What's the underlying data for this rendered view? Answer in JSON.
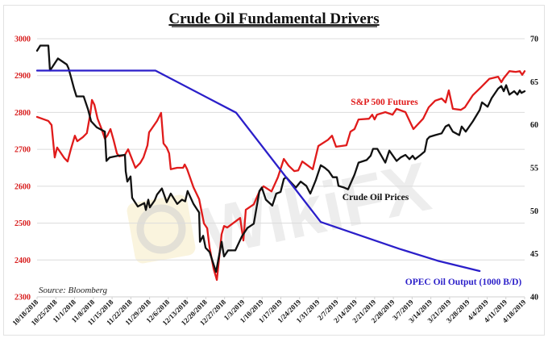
{
  "chart_data": {
    "type": "line",
    "title": "Crude Oil Fundamental Drivers",
    "source": "Source: Bloomberg",
    "watermark": "WikiFX",
    "x_start_date": "10/18/2018",
    "x_tick_labels": [
      "10/18/2018",
      "10/25/2018",
      "11/1/2018",
      "11/8/2018",
      "11/15/2018",
      "11/22/2018",
      "11/29/2018",
      "12/6/2018",
      "12/13/2018",
      "12/20/2018",
      "12/27/2018",
      "1/3/2019",
      "1/10/2019",
      "1/17/2019",
      "1/24/2019",
      "1/31/2019",
      "2/7/2019",
      "2/14/2019",
      "2/21/2019",
      "2/28/2019",
      "3/7/2019",
      "3/14/2019",
      "3/21/2019",
      "3/28/2019",
      "4/4/2019",
      "4/11/2019",
      "4/18/2019"
    ],
    "x_unit": "days since 10/18/2018",
    "xlim": [
      0,
      182
    ],
    "left_axis": {
      "ylim": [
        2300,
        3000
      ],
      "ticks": [
        "2300",
        "2400",
        "2500",
        "2600",
        "2700",
        "2800",
        "2900",
        "3000"
      ],
      "color": "#d81e1e"
    },
    "right_axis": {
      "ylim": [
        40,
        70
      ],
      "ticks": [
        "40",
        "45",
        "50",
        "55",
        "60",
        "65",
        "70"
      ],
      "color": "#111111"
    },
    "grid": true,
    "series": [
      {
        "name": "S&P 500 Futures",
        "axis": "left",
        "color": "#e01b1b",
        "points": [
          [
            0,
            2788
          ],
          [
            4.2,
            2777
          ],
          [
            5.4,
            2766
          ],
          [
            6.6,
            2678
          ],
          [
            7.5,
            2705
          ],
          [
            10.2,
            2676
          ],
          [
            11.4,
            2667
          ],
          [
            12.6,
            2700
          ],
          [
            14.1,
            2737
          ],
          [
            15,
            2722
          ],
          [
            17.1,
            2733
          ],
          [
            18.6,
            2744
          ],
          [
            19.9,
            2799
          ],
          [
            20.5,
            2834
          ],
          [
            21.4,
            2821
          ],
          [
            22.6,
            2783
          ],
          [
            24.1,
            2755
          ],
          [
            25.3,
            2729
          ],
          [
            26.2,
            2737
          ],
          [
            27.4,
            2755
          ],
          [
            28.6,
            2724
          ],
          [
            29.8,
            2689
          ],
          [
            30.7,
            2681
          ],
          [
            32.8,
            2685
          ],
          [
            34,
            2700
          ],
          [
            35.2,
            2678
          ],
          [
            36.7,
            2650
          ],
          [
            38.5,
            2663
          ],
          [
            39.7,
            2678
          ],
          [
            41.2,
            2711
          ],
          [
            41.8,
            2746
          ],
          [
            42.7,
            2755
          ],
          [
            44.8,
            2777
          ],
          [
            46.3,
            2799
          ],
          [
            47.2,
            2716
          ],
          [
            48.4,
            2705
          ],
          [
            49.3,
            2689
          ],
          [
            49.9,
            2646
          ],
          [
            52.3,
            2650
          ],
          [
            54.5,
            2650
          ],
          [
            55.1,
            2659
          ],
          [
            56,
            2646
          ],
          [
            58.4,
            2597
          ],
          [
            60.5,
            2565
          ],
          [
            62.3,
            2499
          ],
          [
            63.5,
            2486
          ],
          [
            64.4,
            2433
          ],
          [
            65.9,
            2376
          ],
          [
            67.1,
            2346
          ],
          [
            68.9,
            2470
          ],
          [
            69.8,
            2492
          ],
          [
            71,
            2488
          ],
          [
            75.8,
            2514
          ],
          [
            77,
            2453
          ],
          [
            77.9,
            2536
          ],
          [
            80.9,
            2551
          ],
          [
            83,
            2586
          ],
          [
            84.5,
            2600
          ],
          [
            87.5,
            2586
          ],
          [
            89.9,
            2624
          ],
          [
            92.1,
            2674
          ],
          [
            93.9,
            2656
          ],
          [
            96,
            2641
          ],
          [
            97.5,
            2643
          ],
          [
            99,
            2667
          ],
          [
            101.1,
            2656
          ],
          [
            102.9,
            2646
          ],
          [
            105,
            2709
          ],
          [
            108.6,
            2726
          ],
          [
            110.1,
            2737
          ],
          [
            111.6,
            2707
          ],
          [
            115.5,
            2711
          ],
          [
            117,
            2748
          ],
          [
            118.5,
            2755
          ],
          [
            120,
            2781
          ],
          [
            123.9,
            2783
          ],
          [
            125.1,
            2794
          ],
          [
            126,
            2781
          ],
          [
            126.9,
            2794
          ],
          [
            130,
            2801
          ],
          [
            132.7,
            2794
          ],
          [
            134.2,
            2810
          ],
          [
            137.5,
            2801
          ],
          [
            140.5,
            2755
          ],
          [
            144.1,
            2783
          ],
          [
            146.2,
            2814
          ],
          [
            148.6,
            2832
          ],
          [
            151,
            2838
          ],
          [
            152.5,
            2827
          ],
          [
            153.7,
            2860
          ],
          [
            155.2,
            2810
          ],
          [
            158.2,
            2807
          ],
          [
            159.7,
            2814
          ],
          [
            162.7,
            2847
          ],
          [
            165.8,
            2869
          ],
          [
            168.8,
            2891
          ],
          [
            172.1,
            2897
          ],
          [
            173.3,
            2882
          ],
          [
            174.2,
            2893
          ],
          [
            176.3,
            2912
          ],
          [
            178.7,
            2910
          ],
          [
            180.2,
            2912
          ],
          [
            181.1,
            2902
          ],
          [
            182,
            2912
          ]
        ]
      },
      {
        "name": "Crude Oil Prices",
        "axis": "right",
        "color": "#111111",
        "points": [
          [
            0,
            68.6
          ],
          [
            1.2,
            69.2
          ],
          [
            4.2,
            69.2
          ],
          [
            4.8,
            66.3
          ],
          [
            7.8,
            67.7
          ],
          [
            11.1,
            67.0
          ],
          [
            11.7,
            66.6
          ],
          [
            12.6,
            65.6
          ],
          [
            13.8,
            64.2
          ],
          [
            14.7,
            63.3
          ],
          [
            17.4,
            63.3
          ],
          [
            19,
            61.8
          ],
          [
            20.2,
            60.4
          ],
          [
            22.3,
            59.7
          ],
          [
            25.3,
            59.2
          ],
          [
            25.9,
            55.8
          ],
          [
            27.1,
            56.2
          ],
          [
            30.1,
            56.4
          ],
          [
            32.8,
            56.5
          ],
          [
            33.1,
            54.6
          ],
          [
            33.7,
            53.4
          ],
          [
            34.9,
            54.0
          ],
          [
            35.5,
            51.5
          ],
          [
            37.6,
            50.5
          ],
          [
            38.8,
            50.7
          ],
          [
            40,
            50.9
          ],
          [
            40.6,
            50.1
          ],
          [
            41.5,
            51.3
          ],
          [
            42.1,
            50.4
          ],
          [
            43.9,
            51.2
          ],
          [
            44.8,
            51.9
          ],
          [
            46.6,
            52.6
          ],
          [
            48.4,
            51.0
          ],
          [
            49.9,
            52.0
          ],
          [
            52.3,
            50.8
          ],
          [
            54.1,
            51.3
          ],
          [
            55.3,
            51.1
          ],
          [
            56.2,
            52.3
          ],
          [
            58.4,
            50.8
          ],
          [
            60.5,
            49.8
          ],
          [
            60.8,
            46.4
          ],
          [
            62,
            47.1
          ],
          [
            62.9,
            45.7
          ],
          [
            64.4,
            45.2
          ],
          [
            66.8,
            42.9
          ],
          [
            68.9,
            46.4
          ],
          [
            69.8,
            44.7
          ],
          [
            71.3,
            45.4
          ],
          [
            74,
            45.4
          ],
          [
            76.4,
            47.0
          ],
          [
            78.5,
            48.0
          ],
          [
            80.9,
            48.5
          ],
          [
            83,
            52.3
          ],
          [
            83.9,
            52.7
          ],
          [
            85.4,
            51.3
          ],
          [
            87.8,
            50.6
          ],
          [
            89.3,
            52.0
          ],
          [
            90.9,
            52.2
          ],
          [
            92.1,
            53.7
          ],
          [
            93,
            53.9
          ],
          [
            94.5,
            53.4
          ],
          [
            96.6,
            52.7
          ],
          [
            98.4,
            53.4
          ],
          [
            100.5,
            52.9
          ],
          [
            102,
            52.0
          ],
          [
            104.1,
            53.6
          ],
          [
            105.9,
            55.3
          ],
          [
            107.4,
            55.0
          ],
          [
            108.9,
            54.6
          ],
          [
            110.4,
            53.9
          ],
          [
            111.9,
            53.9
          ],
          [
            112.5,
            52.9
          ],
          [
            114.6,
            52.7
          ],
          [
            116.1,
            52.5
          ],
          [
            118.5,
            54.2
          ],
          [
            120,
            55.6
          ],
          [
            123,
            55.9
          ],
          [
            124.5,
            56.4
          ],
          [
            125.4,
            57.2
          ],
          [
            127,
            57.2
          ],
          [
            128.5,
            56.4
          ],
          [
            130,
            55.6
          ],
          [
            131.5,
            57.0
          ],
          [
            134.2,
            55.8
          ],
          [
            135.7,
            56.2
          ],
          [
            137.5,
            56.5
          ],
          [
            139,
            56.0
          ],
          [
            140.2,
            56.4
          ],
          [
            141.1,
            56.0
          ],
          [
            143.2,
            56.5
          ],
          [
            144.7,
            56.9
          ],
          [
            145.6,
            58.3
          ],
          [
            146.5,
            58.6
          ],
          [
            148.6,
            58.8
          ],
          [
            151,
            59.0
          ],
          [
            152.5,
            59.8
          ],
          [
            153.7,
            60.0
          ],
          [
            155.2,
            59.2
          ],
          [
            157.6,
            58.8
          ],
          [
            158.5,
            59.8
          ],
          [
            160,
            59.2
          ],
          [
            162.7,
            60.4
          ],
          [
            165.2,
            61.7
          ],
          [
            166.1,
            62.6
          ],
          [
            168.2,
            62.1
          ],
          [
            169.7,
            63.1
          ],
          [
            172.1,
            64.2
          ],
          [
            173.3,
            64.5
          ],
          [
            174.2,
            63.9
          ],
          [
            175.1,
            64.6
          ],
          [
            176.3,
            63.5
          ],
          [
            178.1,
            63.9
          ],
          [
            179.3,
            63.5
          ],
          [
            180.2,
            64.0
          ],
          [
            180.8,
            63.7
          ],
          [
            182,
            63.9
          ]
        ]
      },
      {
        "name": "OPEC Oil Output (1000 B/D)",
        "axis": "right",
        "color": "#2b1fc9",
        "points": [
          [
            0,
            66.3
          ],
          [
            44.2,
            66.3
          ],
          [
            74.3,
            61.4
          ],
          [
            105.9,
            48.7
          ],
          [
            135.1,
            45.6
          ],
          [
            149.5,
            44.2
          ],
          [
            165.2,
            43.0
          ]
        ]
      }
    ]
  }
}
